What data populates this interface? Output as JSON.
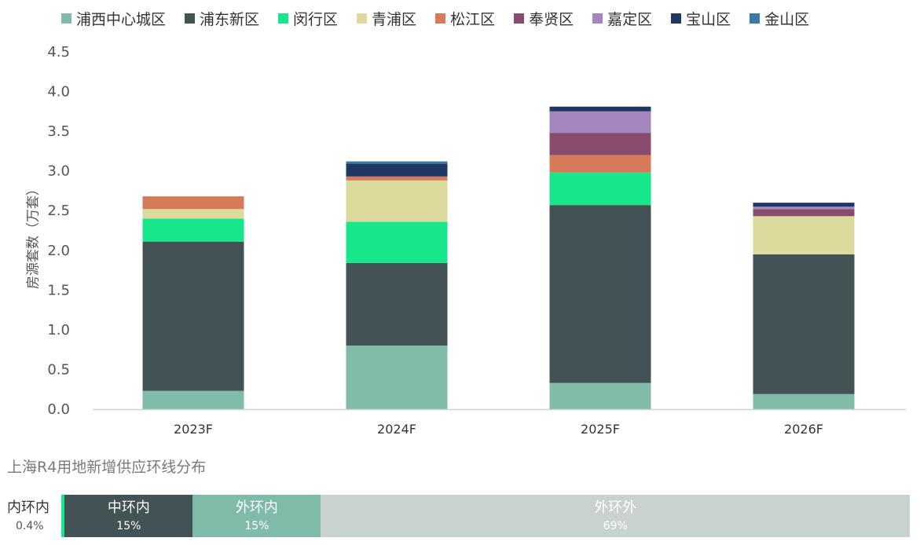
{
  "chart_data": {
    "type": "bar",
    "stacked": true,
    "title": "",
    "xlabel": "",
    "ylabel": "房源套数（万套）",
    "ylim": [
      0,
      4.5
    ],
    "yticks": [
      "0.0",
      "0.5",
      "1.0",
      "1.5",
      "2.0",
      "2.5",
      "3.0",
      "3.5",
      "4.0",
      "4.5"
    ],
    "categories": [
      "2023F",
      "2024F",
      "2025F",
      "2026F"
    ],
    "legend_position": "top",
    "grid": false,
    "series": [
      {
        "name": "浦西中心城区",
        "color": "#80BBAA",
        "values": [
          0.23,
          0.8,
          0.33,
          0.19
        ]
      },
      {
        "name": "浦东新区",
        "color": "#435255",
        "values": [
          1.88,
          1.04,
          2.24,
          1.76
        ]
      },
      {
        "name": "闵行区",
        "color": "#18E68B",
        "values": [
          0.29,
          0.52,
          0.41,
          0.0
        ]
      },
      {
        "name": "青浦区",
        "color": "#DCDA9C",
        "values": [
          0.12,
          0.52,
          0.0,
          0.48
        ]
      },
      {
        "name": "松江区",
        "color": "#D57B5A",
        "values": [
          0.16,
          0.05,
          0.22,
          0.0
        ]
      },
      {
        "name": "奉贤区",
        "color": "#8A4C6E",
        "values": [
          0.0,
          0.0,
          0.28,
          0.09
        ]
      },
      {
        "name": "嘉定区",
        "color": "#A486BF",
        "values": [
          0.0,
          0.0,
          0.27,
          0.03
        ]
      },
      {
        "name": "宝山区",
        "color": "#1E3763",
        "values": [
          0.0,
          0.16,
          0.06,
          0.05
        ]
      },
      {
        "name": "金山区",
        "color": "#3A78A7",
        "values": [
          0.0,
          0.03,
          0.0,
          0.0
        ]
      }
    ]
  },
  "ring_section": {
    "title": "上海R4用地新增供应环线分布",
    "segments": [
      {
        "name": "内环内",
        "pct_label": "0.4%",
        "value": 0.4,
        "color": "#18E68B"
      },
      {
        "name": "中环内",
        "pct_label": "15%",
        "value": 15.1,
        "color": "#435255"
      },
      {
        "name": "外环内",
        "pct_label": "15%",
        "value": 15.1,
        "color": "#80BBAA"
      },
      {
        "name": "外环外",
        "pct_label": "69%",
        "value": 69.4,
        "color": "#C9D1D1"
      }
    ]
  }
}
